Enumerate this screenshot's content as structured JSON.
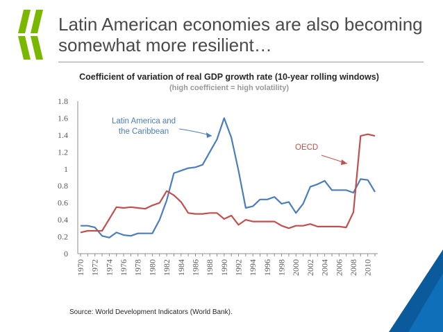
{
  "slide": {
    "title": "Latin American economies are also becoming somewhat more resilient…",
    "source": "Source: World Development Indicators (World Bank)."
  },
  "colors": {
    "lac": "#4a7ebb",
    "oecd": "#c0504d",
    "brand_green": "#7ab800",
    "brand_blue": "#0a5a9c"
  },
  "chart_data": {
    "type": "line",
    "title": "Coefficient of variation of real GDP growth rate (10-year rolling windows)",
    "subtitle": "(high coefficient = high volatility)",
    "xlabel": "",
    "ylabel": "",
    "ylim": [
      0,
      1.8
    ],
    "yticks": [
      "0",
      "0.2",
      "0.4",
      "0.6",
      "0.8",
      "1",
      "1.2",
      "1.4",
      "1.6",
      "1.8"
    ],
    "x": [
      1970,
      1971,
      1972,
      1973,
      1974,
      1975,
      1976,
      1977,
      1978,
      1979,
      1980,
      1981,
      1982,
      1983,
      1984,
      1985,
      1986,
      1987,
      1988,
      1989,
      1990,
      1991,
      1992,
      1993,
      1994,
      1995,
      1996,
      1997,
      1998,
      1999,
      2000,
      2001,
      2002,
      2003,
      2004,
      2005,
      2006,
      2007,
      2008,
      2009,
      2010,
      2011
    ],
    "xticks": [
      "1970",
      "1972",
      "1974",
      "1976",
      "1978",
      "1980",
      "1982",
      "1984",
      "1986",
      "1988",
      "1990",
      "1992",
      "1994",
      "1996",
      "1998",
      "2000",
      "2002",
      "2004",
      "2006",
      "2008",
      "2010"
    ],
    "series": [
      {
        "name": "Latin America and the Caribbean",
        "label_lines": [
          "Latin America and",
          "the Caribbean"
        ],
        "color": "#4a7ebb",
        "values": [
          0.33,
          0.33,
          0.31,
          0.21,
          0.19,
          0.25,
          0.22,
          0.21,
          0.24,
          0.24,
          0.24,
          0.4,
          0.63,
          0.95,
          0.98,
          1.01,
          1.02,
          1.05,
          1.2,
          1.35,
          1.6,
          1.37,
          0.98,
          0.54,
          0.56,
          0.64,
          0.64,
          0.67,
          0.59,
          0.61,
          0.48,
          0.59,
          0.79,
          0.82,
          0.86,
          0.75,
          0.75,
          0.75,
          0.72,
          0.88,
          0.87,
          0.73
        ]
      },
      {
        "name": "OECD",
        "label_lines": [
          "OECD"
        ],
        "color": "#c0504d",
        "values": [
          0.25,
          0.27,
          0.27,
          0.27,
          0.41,
          0.55,
          0.54,
          0.55,
          0.54,
          0.53,
          0.57,
          0.6,
          0.74,
          0.69,
          0.61,
          0.48,
          0.47,
          0.47,
          0.48,
          0.48,
          0.41,
          0.45,
          0.34,
          0.4,
          0.38,
          0.38,
          0.38,
          0.38,
          0.33,
          0.3,
          0.33,
          0.33,
          0.35,
          0.32,
          0.32,
          0.32,
          0.32,
          0.31,
          0.49,
          1.39,
          1.41,
          1.39
        ]
      }
    ]
  }
}
